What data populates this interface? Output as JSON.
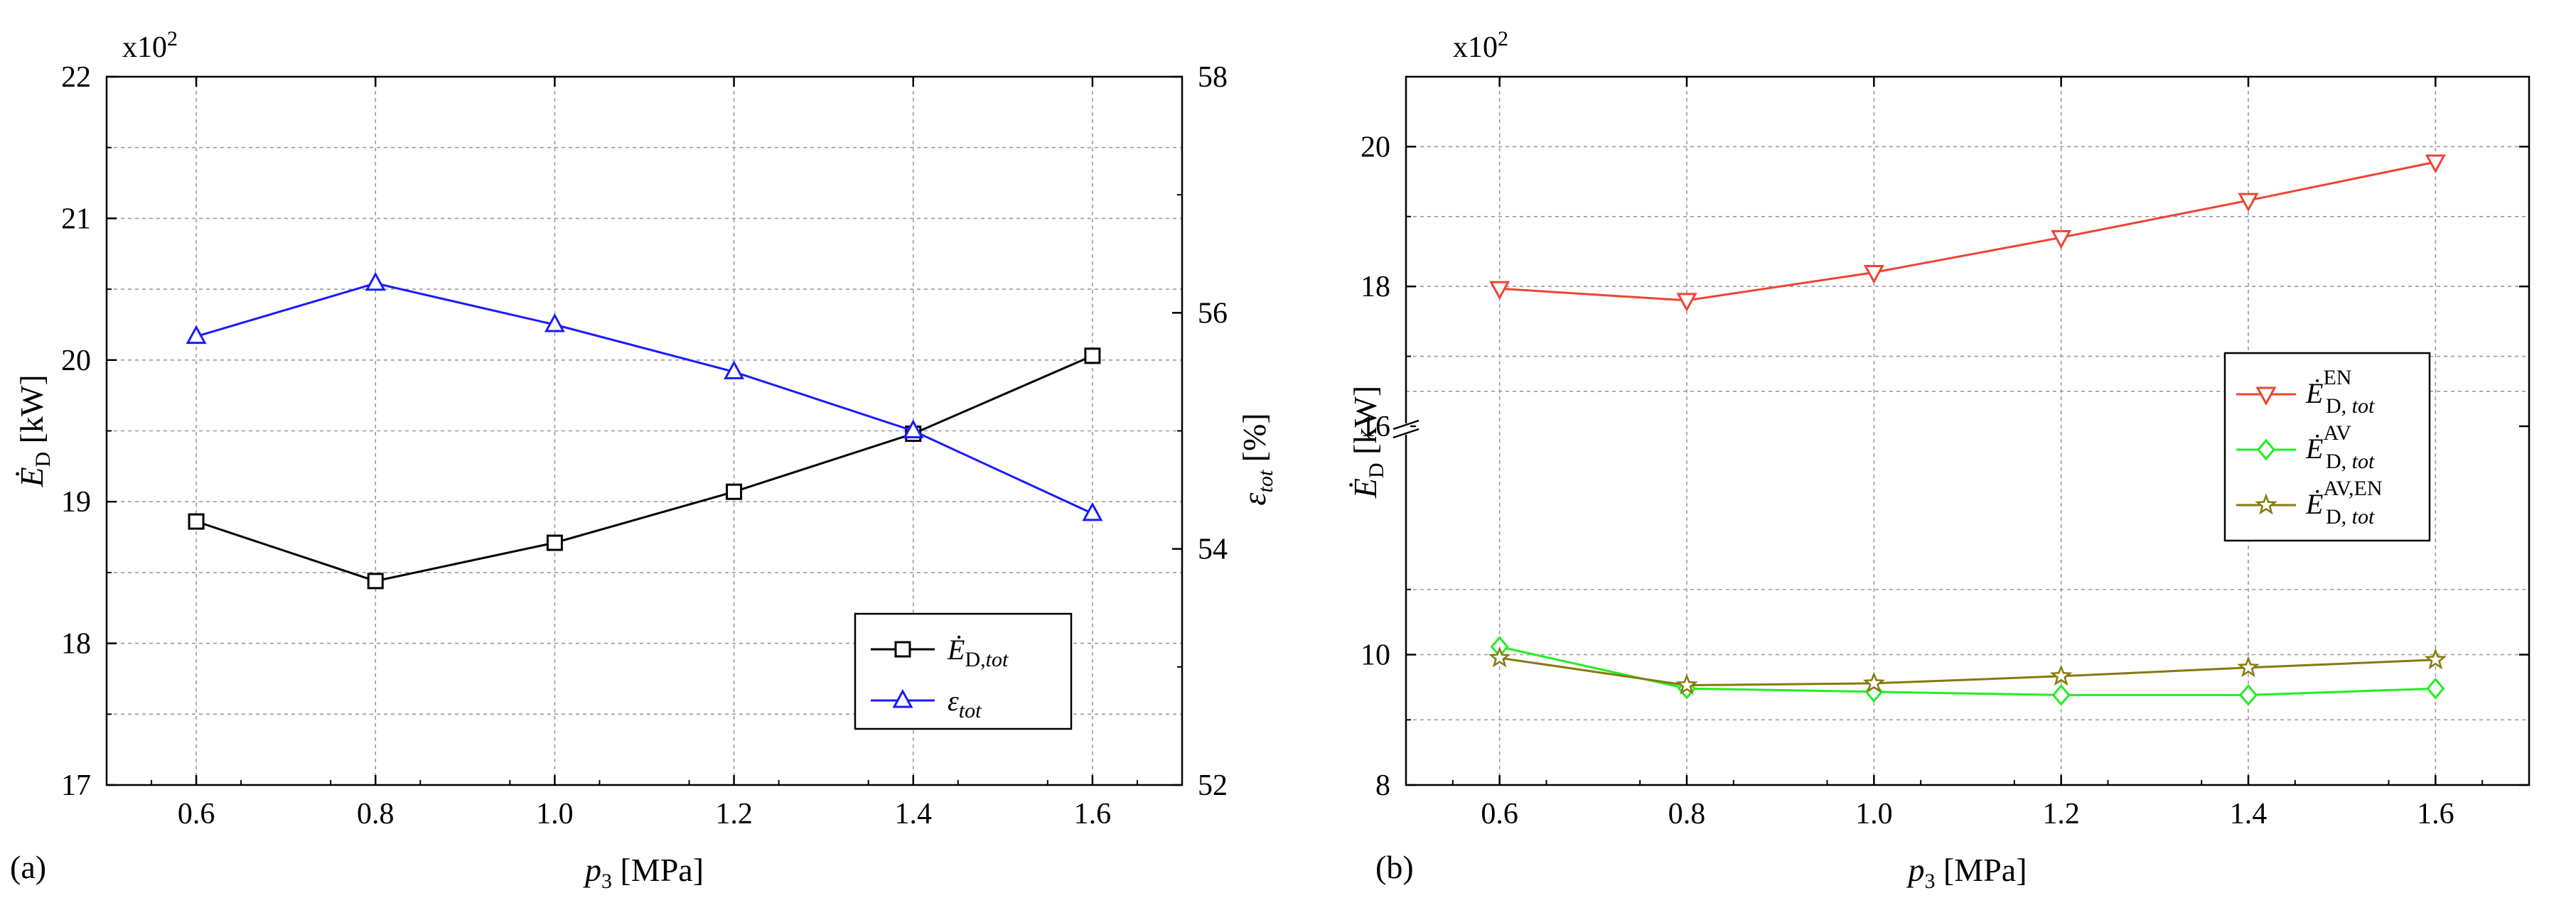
{
  "figure": {
    "background": "#ffffff",
    "grid_color": "#9a9a9a",
    "axis_color": "#000000"
  },
  "chart_data": [
    {
      "type": "line",
      "panel_label": "(a)",
      "multiplier_label": "x10",
      "multiplier_exp": "2",
      "xlabel": {
        "main": "p",
        "sub": "3",
        "unit": " [MPa]"
      },
      "ylabel_left": {
        "main": "Ė",
        "sub": "D",
        "unit": " [kW]"
      },
      "ylabel_right": {
        "main": "ε",
        "sub": "tot",
        "unit": " [%]"
      },
      "x": [
        0.6,
        0.8,
        1.0,
        1.2,
        1.4,
        1.6
      ],
      "xticks": [
        0.6,
        0.8,
        1.0,
        1.2,
        1.4,
        1.6
      ],
      "xticklabels": [
        "0.6",
        "0.8",
        "1.0",
        "1.2",
        "1.4",
        "1.6"
      ],
      "xlim": [
        0.5,
        1.7
      ],
      "ylim_left": [
        17,
        22
      ],
      "yticks_left": [
        17,
        18,
        19,
        20,
        21,
        22
      ],
      "yticklabels_left": [
        "17",
        "18",
        "19",
        "20",
        "21",
        "22"
      ],
      "ylim_right": [
        52,
        58
      ],
      "yticks_right": [
        52,
        54,
        56,
        58
      ],
      "yticklabels_right": [
        "52",
        "54",
        "56",
        "58"
      ],
      "grid": true,
      "legend_position": "lower-right",
      "series": [
        {
          "name": "Ė_D,tot",
          "legend_main": "Ė",
          "legend_sub": "D,",
          "legend_sub_it": "tot",
          "axis": "left",
          "color": "#000000",
          "marker": "square",
          "values": [
            18.86,
            18.44,
            18.71,
            19.07,
            19.48,
            20.03
          ]
        },
        {
          "name": "ε_tot",
          "legend_main": "ε",
          "legend_sub": "",
          "legend_sub_it": "tot",
          "axis": "right",
          "color": "#1a1aff",
          "marker": "triangle-up",
          "values": [
            55.8,
            56.25,
            55.9,
            55.5,
            55.0,
            54.3
          ]
        }
      ]
    },
    {
      "type": "line",
      "panel_label": "(b)",
      "multiplier_label": "x10",
      "multiplier_exp": "2",
      "xlabel": {
        "main": "p",
        "sub": "3",
        "unit": " [MPa]"
      },
      "ylabel_left": {
        "main": "Ė",
        "sub": "D",
        "unit": " [kW]"
      },
      "x": [
        0.6,
        0.8,
        1.0,
        1.2,
        1.4,
        1.6
      ],
      "xticks": [
        0.6,
        0.8,
        1.0,
        1.2,
        1.4,
        1.6
      ],
      "xticklabels": [
        "0.6",
        "0.8",
        "1.0",
        "1.2",
        "1.4",
        "1.6"
      ],
      "xlim": [
        0.5,
        1.7
      ],
      "broken_axis": true,
      "ylim_lower": [
        8,
        12
      ],
      "ylim_upper": [
        16,
        21
      ],
      "yticks": [
        8,
        10,
        16,
        18,
        20
      ],
      "yticklabels": [
        "8",
        "10",
        "16",
        "18",
        "20"
      ],
      "grid": true,
      "legend_position": "right",
      "series": [
        {
          "name": "Ė_D,tot^EN",
          "legend_main": "Ė",
          "legend_sub": "D, ",
          "legend_sub_it": "tot",
          "legend_sup": "EN",
          "color": "#ee4433",
          "marker": "triangle-down",
          "values": [
            17.97,
            17.8,
            18.2,
            18.7,
            19.23,
            19.78
          ]
        },
        {
          "name": "Ė_D,tot^AV",
          "legend_main": "Ė",
          "legend_sub": "D, ",
          "legend_sub_it": "tot",
          "legend_sup": "AV",
          "color": "#22ee22",
          "marker": "diamond",
          "values": [
            10.12,
            9.48,
            9.43,
            9.38,
            9.38,
            9.48
          ]
        },
        {
          "name": "Ė_D,tot^AV,EN",
          "legend_main": "Ė",
          "legend_sub": "D, ",
          "legend_sub_it": "tot",
          "legend_sup": "AV,EN",
          "color": "#857a10",
          "marker": "star",
          "values": [
            9.95,
            9.53,
            9.56,
            9.67,
            9.8,
            9.92
          ]
        }
      ]
    }
  ]
}
